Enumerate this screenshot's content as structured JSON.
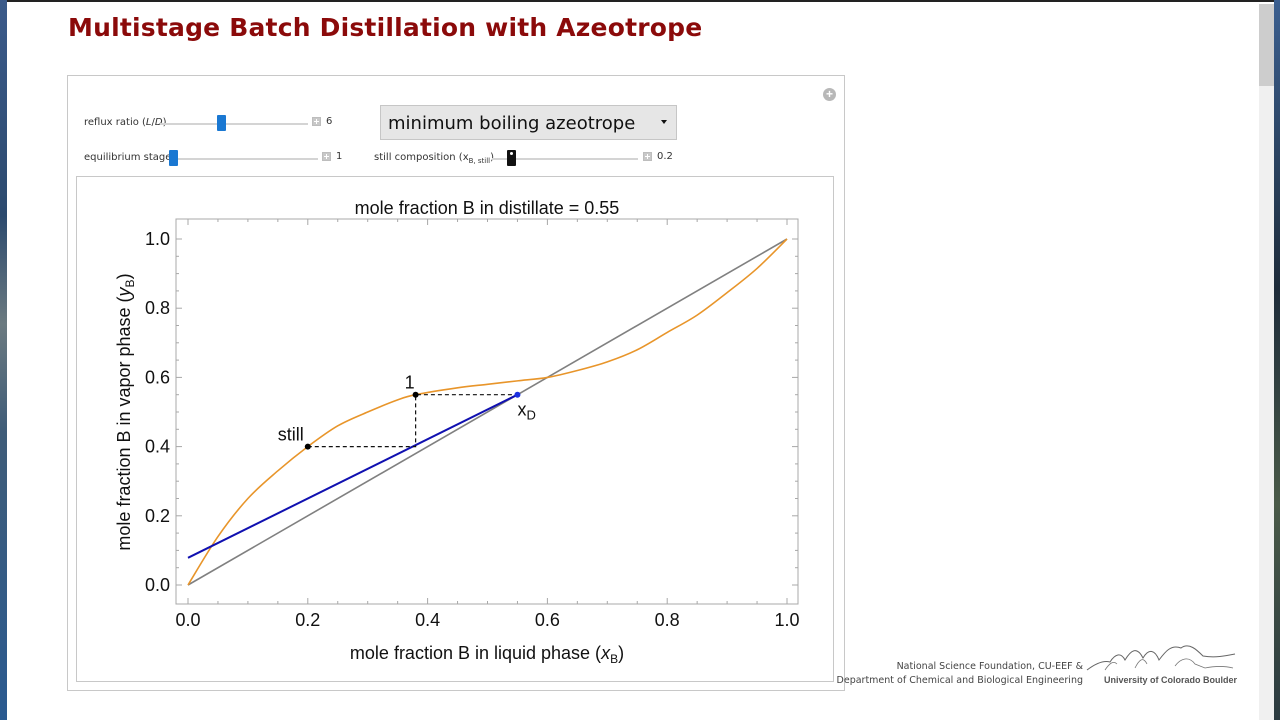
{
  "page": {
    "title": "Multistage Batch Distillation with Azeotrope"
  },
  "controls": {
    "reflux_ratio": {
      "label": "reflux ratio (L/D)",
      "value": "6"
    },
    "equilibrium_stages": {
      "label": "equilibrium stages",
      "value": "1"
    },
    "still_composition": {
      "label": "still composition (x",
      "sub": "B, still",
      "close": ")",
      "value": "0.2"
    },
    "system_dropdown": {
      "selected": "minimum boiling azeotrope"
    },
    "panel_options_icon": "plus-circle-icon"
  },
  "footer": {
    "line1": "National Science Foundation, CU-EEF &",
    "line2": "Department of Chemical and Biological Engineering",
    "university": "University of Colorado Boulder"
  },
  "chart_data": {
    "type": "line",
    "title": "mole fraction B in distillate = 0.55",
    "xlabel": "mole fraction B in liquid phase (xB)",
    "ylabel": "mole fraction B in vapor phase (yB)",
    "xlim": [
      0,
      1
    ],
    "ylim": [
      0,
      1
    ],
    "xticks": [
      "0.0",
      "0.2",
      "0.4",
      "0.6",
      "0.8",
      "1.0"
    ],
    "yticks": [
      "0.0",
      "0.2",
      "0.4",
      "0.6",
      "0.8",
      "1.0"
    ],
    "grid": false,
    "colors": {
      "equilibrium": "#e8952a",
      "diagonal": "#808080",
      "operating": "#1010b0",
      "points": "#000000",
      "xD": "#1a30e0"
    },
    "series": [
      {
        "name": "equilibrium curve",
        "x": [
          0,
          0.05,
          0.1,
          0.15,
          0.2,
          0.25,
          0.3,
          0.35,
          0.38,
          0.45,
          0.5,
          0.55,
          0.6,
          0.65,
          0.7,
          0.75,
          0.8,
          0.85,
          0.9,
          0.95,
          1.0
        ],
        "y": [
          0,
          0.14,
          0.25,
          0.33,
          0.4,
          0.46,
          0.5,
          0.535,
          0.55,
          0.57,
          0.58,
          0.59,
          0.6,
          0.62,
          0.645,
          0.68,
          0.73,
          0.78,
          0.845,
          0.915,
          1.0
        ]
      },
      {
        "name": "y = x",
        "x": [
          0,
          1
        ],
        "y": [
          0,
          1
        ]
      },
      {
        "name": "operating line",
        "x": [
          0,
          0.55
        ],
        "y": [
          0.0786,
          0.55
        ]
      }
    ],
    "stairs": {
      "x": [
        0.2,
        0.38,
        0.38,
        0.55
      ],
      "y": [
        0.4,
        0.4,
        0.55,
        0.55
      ]
    },
    "annotations": [
      {
        "text": "still",
        "x": 0.2,
        "y": 0.4
      },
      {
        "text": "1",
        "x": 0.38,
        "y": 0.55
      },
      {
        "text": "xD",
        "x": 0.55,
        "y": 0.55
      }
    ]
  }
}
